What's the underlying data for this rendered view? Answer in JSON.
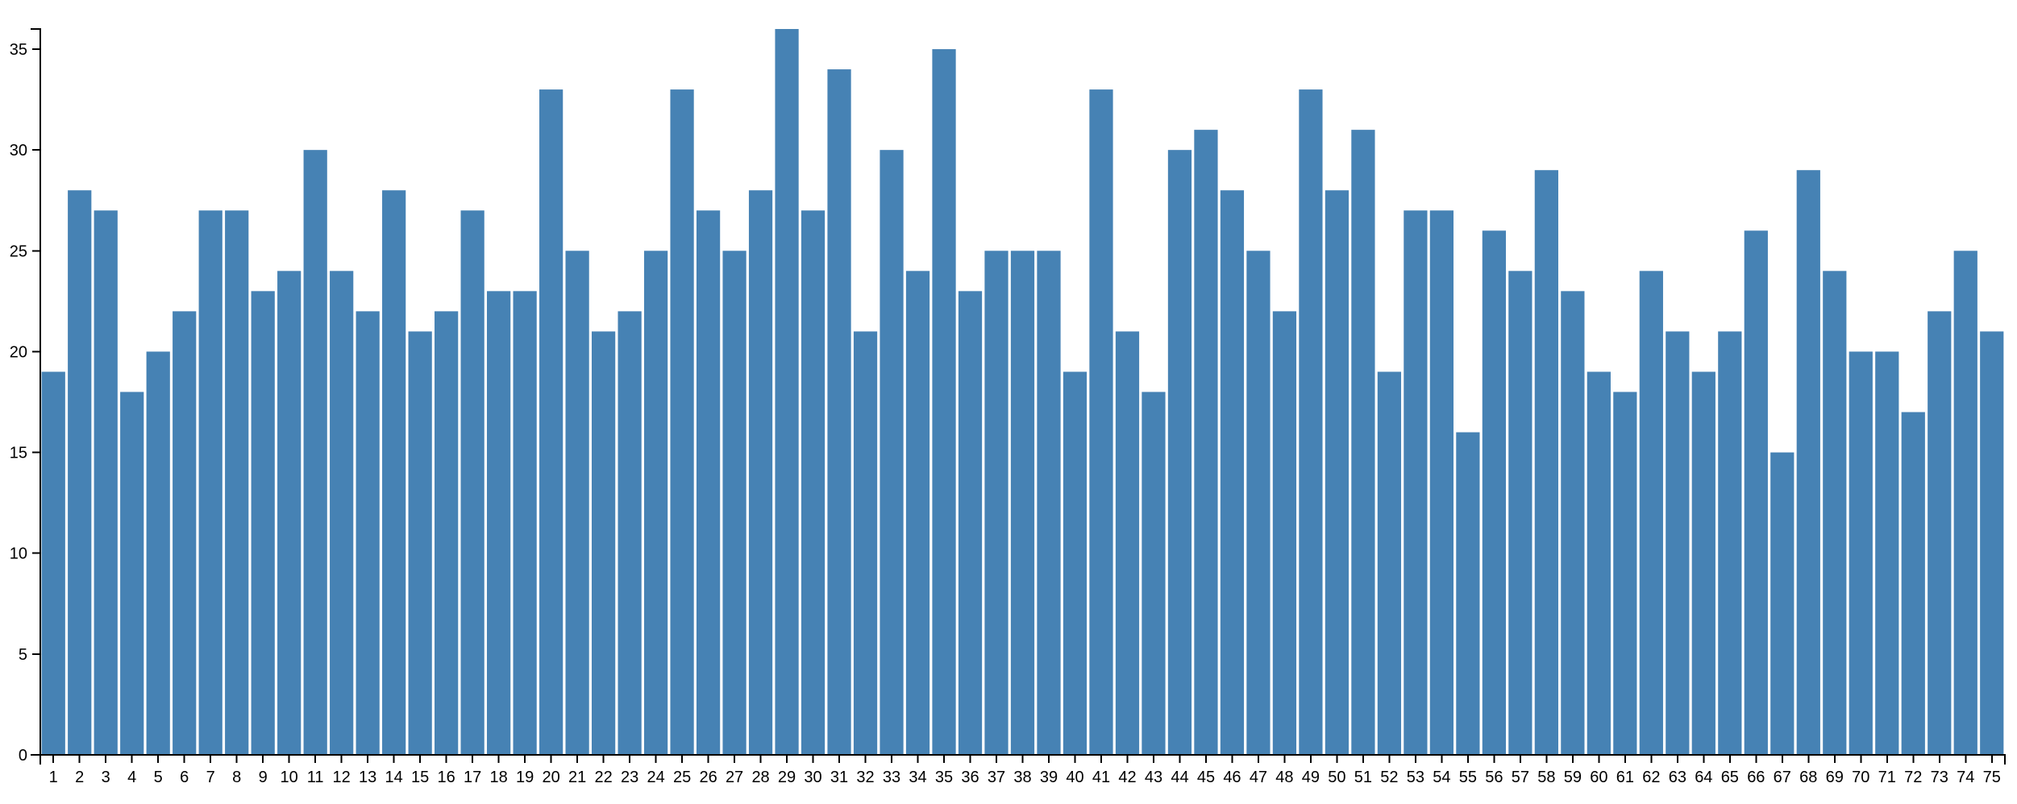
{
  "chart_data": {
    "type": "bar",
    "title": "",
    "xlabel": "",
    "ylabel": "",
    "categories": [
      "1",
      "2",
      "3",
      "4",
      "5",
      "6",
      "7",
      "8",
      "9",
      "10",
      "11",
      "12",
      "13",
      "14",
      "15",
      "16",
      "17",
      "18",
      "19",
      "20",
      "21",
      "22",
      "23",
      "24",
      "25",
      "26",
      "27",
      "28",
      "29",
      "30",
      "31",
      "32",
      "33",
      "34",
      "35",
      "36",
      "37",
      "38",
      "39",
      "40",
      "41",
      "42",
      "43",
      "44",
      "45",
      "46",
      "47",
      "48",
      "49",
      "50",
      "51",
      "52",
      "53",
      "54",
      "55",
      "56",
      "57",
      "58",
      "59",
      "60",
      "61",
      "62",
      "63",
      "64",
      "65",
      "66",
      "67",
      "68",
      "69",
      "70",
      "71",
      "72",
      "73",
      "74",
      "75"
    ],
    "values": [
      19,
      28,
      27,
      18,
      20,
      22,
      27,
      27,
      23,
      24,
      30,
      24,
      22,
      28,
      21,
      22,
      27,
      23,
      23,
      33,
      25,
      21,
      22,
      25,
      33,
      27,
      25,
      28,
      36,
      27,
      34,
      21,
      30,
      24,
      35,
      23,
      25,
      25,
      25,
      19,
      33,
      21,
      18,
      30,
      31,
      28,
      25,
      22,
      33,
      28,
      31,
      19,
      27,
      27,
      16,
      26,
      24,
      29,
      23,
      19,
      18,
      24,
      21,
      19,
      21,
      26,
      15,
      29,
      24,
      20,
      20,
      17,
      22,
      25,
      21
    ],
    "ylim": [
      0,
      36
    ],
    "yticks": [
      0,
      5,
      10,
      15,
      20,
      25,
      30,
      35
    ],
    "grid": false,
    "legend": "none",
    "bar_color": "#4682b4"
  }
}
